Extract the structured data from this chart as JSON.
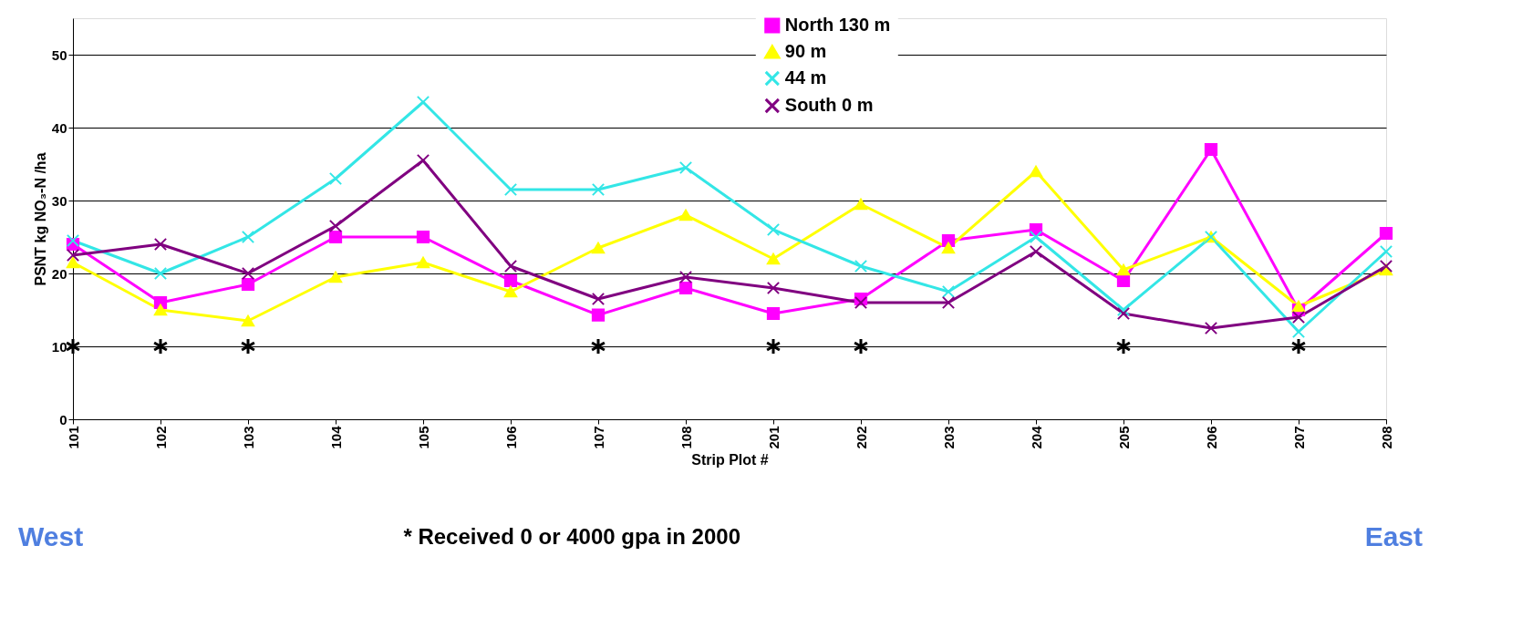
{
  "chart_data": {
    "type": "line",
    "ylabel": "PSNT  kg NO₃-N /ha",
    "xlabel": "Strip Plot #",
    "categories": [
      "101",
      "102",
      "103",
      "104",
      "105",
      "106",
      "107",
      "108",
      "201",
      "202",
      "203",
      "204",
      "205",
      "206",
      "207",
      "208"
    ],
    "series": [
      {
        "name": "North 130 m",
        "color": "#ff00ff",
        "marker": "square",
        "values": [
          24,
          16,
          18.5,
          25,
          25,
          19,
          14.3,
          18,
          14.5,
          16.5,
          24.5,
          26,
          19,
          37,
          15,
          25.5
        ]
      },
      {
        "name": "90 m",
        "color": "#ffff00",
        "marker": "triangle",
        "values": [
          21.5,
          15,
          13.5,
          19.5,
          21.5,
          17.5,
          23.5,
          28,
          22,
          29.5,
          23.5,
          34,
          20.5,
          25,
          15.5,
          20.5
        ]
      },
      {
        "name": "44 m",
        "color": "#33e6e6",
        "marker": "cross",
        "values": [
          24.5,
          20,
          25,
          33,
          43.5,
          31.5,
          31.5,
          34.5,
          26,
          21,
          17.5,
          25,
          15,
          25,
          12,
          23
        ]
      },
      {
        "name": "South 0 m",
        "color": "#800080",
        "marker": "cross",
        "values": [
          22.5,
          24,
          20,
          26.5,
          35.5,
          21,
          16.5,
          19.5,
          18,
          16,
          16,
          23,
          14.5,
          12.5,
          14,
          21
        ]
      },
      {
        "type": "scatter",
        "color": "#000000",
        "marker": "cross",
        "values": [
          10,
          10,
          10,
          null,
          null,
          null,
          10,
          null,
          10,
          10,
          null,
          null,
          10,
          null,
          10,
          null
        ]
      }
    ],
    "ylim": [
      0,
      55
    ],
    "yticks": [
      0,
      10,
      20,
      30,
      40,
      50
    ],
    "grid": "y",
    "legend": "top",
    "annotations": [
      "West",
      "* Received 0 or 4000 gpa in 2000",
      "East"
    ]
  }
}
